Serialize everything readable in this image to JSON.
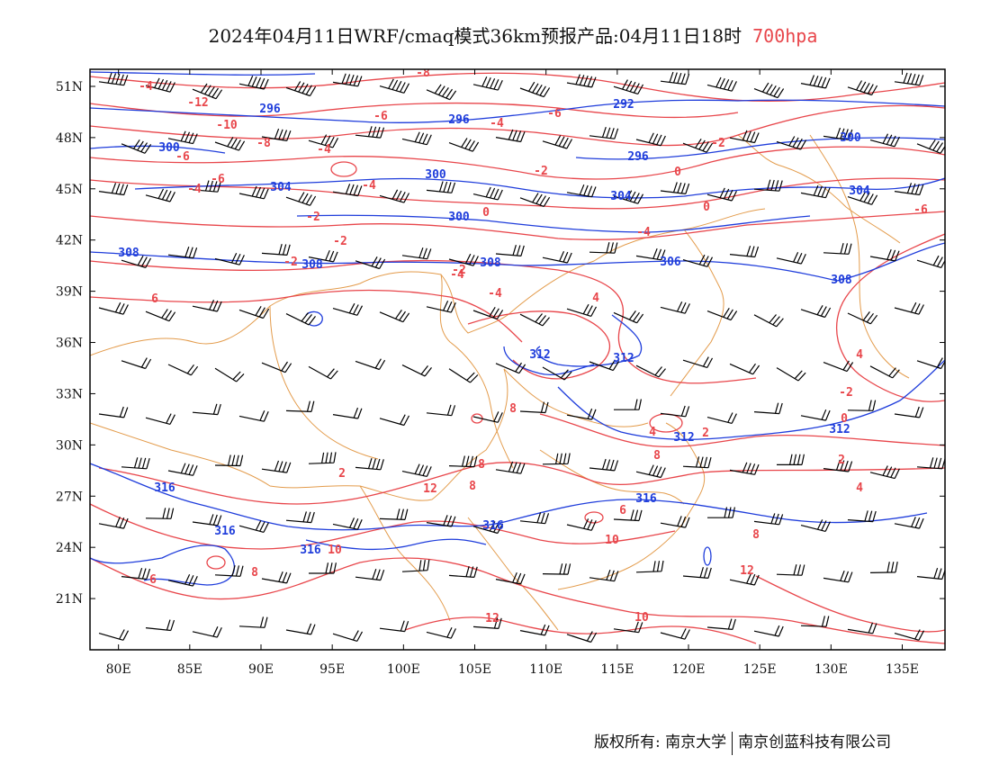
{
  "title": {
    "text": "2024年04月11日WRF/cmaq模式36km预报产品:04月11日18时",
    "level": "700hpa"
  },
  "colors": {
    "temperature": "#e8464b",
    "geopotential": "#1f3ddb",
    "wind": "#000000",
    "border": "#e39b4b",
    "frame": "#000000"
  },
  "map": {
    "lon_min": 78,
    "lon_max": 138,
    "lat_min": 18,
    "lat_max": 52,
    "lon_ticks": [
      "80E",
      "85E",
      "90E",
      "95E",
      "100E",
      "105E",
      "110E",
      "115E",
      "120E",
      "125E",
      "130E",
      "135E"
    ],
    "lat_ticks": [
      "51N",
      "48N",
      "45N",
      "42N",
      "39N",
      "36N",
      "33N",
      "30N",
      "27N",
      "24N",
      "21N"
    ],
    "geopotential_labels": [
      "296",
      "296",
      "292",
      "300",
      "296",
      "300",
      "304",
      "300",
      "304",
      "300",
      "304",
      "308",
      "308",
      "308",
      "306",
      "308",
      "312",
      "312",
      "312",
      "312",
      "316",
      "316",
      "316",
      "316",
      "316"
    ],
    "temperature_labels": [
      "-8",
      "-4",
      "-12",
      "-10",
      "-6",
      "-8",
      "-6",
      "-4",
      "-6",
      "-4",
      "-2",
      "-6",
      "-4",
      "-2",
      "-4",
      "0",
      "-2",
      "0",
      "-2",
      "-4",
      "-2",
      "0",
      "-2",
      "-6",
      "-4",
      "6",
      "4",
      "-4",
      "4",
      "-2",
      "0",
      "2",
      "8",
      "4",
      "8",
      "2",
      "4",
      "12",
      "8",
      "8",
      "6",
      "10",
      "8",
      "10",
      "8",
      "12",
      "12",
      "10",
      "6",
      "2"
    ]
  },
  "footer": {
    "copyright": "版权所有: 南京大学",
    "company": "南京创蓝科技有限公司"
  }
}
